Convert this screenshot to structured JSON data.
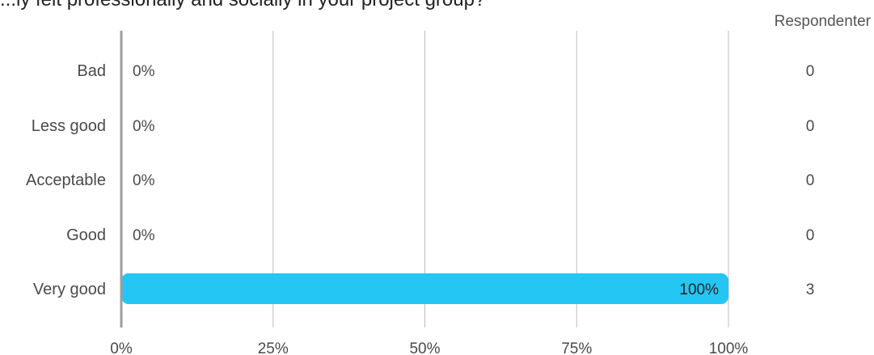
{
  "question": "...ly felt professionally and socially in your project group?",
  "count_header": "Respondenter",
  "chart_data": {
    "type": "bar",
    "orientation": "horizontal",
    "title": "...ly felt professionally and socially in your project group?",
    "categories": [
      "Bad",
      "Less good",
      "Acceptable",
      "Good",
      "Very good"
    ],
    "values": [
      0,
      0,
      0,
      0,
      100
    ],
    "value_labels": [
      "0%",
      "0%",
      "0%",
      "0%",
      "100%"
    ],
    "counts": [
      0,
      0,
      0,
      0,
      3
    ],
    "x_ticks": [
      0,
      25,
      50,
      75,
      100
    ],
    "x_tick_labels": [
      "0%",
      "25%",
      "50%",
      "75%",
      "100%"
    ],
    "xlim": [
      0,
      100
    ],
    "grid": true,
    "xlabel": "",
    "ylabel": "",
    "colors": {
      "bar": "#24c6f4",
      "grid": "#bdbdbd",
      "axis": "#9e9e9e",
      "text": "#4a4a4a"
    }
  }
}
